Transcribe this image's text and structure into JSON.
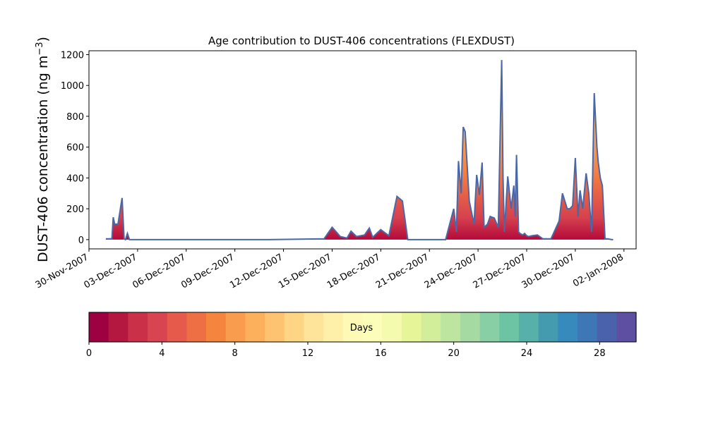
{
  "chart_data": {
    "type": "area",
    "title": "Age contribution to DUST-406 concentrations (FLEXDUST)",
    "ylabel_main": "DUST-406 concentration (ng m",
    "ylabel_sup": "−3",
    "ylabel_close": ")",
    "xlabel": "",
    "ylim": [
      -60,
      1225
    ],
    "yticks": [
      0,
      200,
      400,
      600,
      800,
      1000,
      1200
    ],
    "xlim": [
      "2007-11-30T00:00",
      "2008-01-02T18:00"
    ],
    "xticks": [
      "2007-11-30",
      "2007-12-03",
      "2007-12-06",
      "2007-12-09",
      "2007-12-12",
      "2007-12-15",
      "2007-12-18",
      "2007-12-21",
      "2007-12-24",
      "2007-12-27",
      "2007-12-30",
      "2008-01-02"
    ],
    "xtick_labels": [
      "30-Nov-2007",
      "03-Dec-2007",
      "06-Dec-2007",
      "09-Dec-2007",
      "12-Dec-2007",
      "15-Dec-2007",
      "18-Dec-2007",
      "21-Dec-2007",
      "24-Dec-2007",
      "27-Dec-2007",
      "30-Dec-2007",
      "02-Jan-2008"
    ],
    "grid": false,
    "line_color": "#4a68a8",
    "series": [
      {
        "x": [
          "2007-12-01T01:00",
          "2007-12-01T10:00",
          "2007-12-01T12:00",
          "2007-12-01T14:00",
          "2007-12-01T19:00",
          "2007-12-02T01:00",
          "2007-12-02T04:00",
          "2007-12-02T06:00",
          "2007-12-02T09:00",
          "2007-12-02T12:00",
          "2007-12-02T18:00",
          "2007-12-02T20:00",
          "2007-12-02T22:00",
          "2007-12-03T00:00",
          "2007-12-03T07:00",
          "2007-12-04T00:00",
          "2007-12-07T00:00",
          "2007-12-09T00:00",
          "2007-12-11T00:00",
          "2007-12-14T12:00",
          "2007-12-15T00:00",
          "2007-12-15T08:00",
          "2007-12-15T12:00",
          "2007-12-15T22:00",
          "2007-12-16T04:00",
          "2007-12-16T12:00",
          "2007-12-17T00:00",
          "2007-12-17T07:00",
          "2007-12-17T12:00",
          "2007-12-18T00:00",
          "2007-12-18T12:00",
          "2007-12-19T00:00",
          "2007-12-19T08:00",
          "2007-12-19T16:00",
          "2007-12-19T22:00",
          "2007-12-20T04:00",
          "2007-12-20T09:00",
          "2007-12-20T14:00",
          "2007-12-21T00:00",
          "2007-12-21T12:00",
          "2007-12-22T00:00",
          "2007-12-22T12:00",
          "2007-12-22T16:00",
          "2007-12-22T19:00",
          "2007-12-22T23:00",
          "2007-12-23T02:00",
          "2007-12-23T05:00",
          "2007-12-23T11:00",
          "2007-12-23T18:00",
          "2007-12-23T22:00",
          "2007-12-24T02:00",
          "2007-12-24T06:00",
          "2007-12-24T09:00",
          "2007-12-24T14:00",
          "2007-12-24T18:00",
          "2007-12-25T00:00",
          "2007-12-25T06:00",
          "2007-12-25T11:00",
          "2007-12-25T13:00",
          "2007-12-25T15:00",
          "2007-12-25T20:00",
          "2007-12-26T01:00",
          "2007-12-26T05:00",
          "2007-12-26T07:00",
          "2007-12-26T09:00",
          "2007-12-26T12:00",
          "2007-12-26T14:00",
          "2007-12-26T18:00",
          "2007-12-26T21:00",
          "2007-12-27T00:00",
          "2007-12-27T03:00",
          "2007-12-27T08:00",
          "2007-12-27T16:00",
          "2007-12-28T00:00",
          "2007-12-28T12:00",
          "2007-12-29T00:00",
          "2007-12-29T05:00",
          "2007-12-29T12:00",
          "2007-12-29T16:00",
          "2007-12-29T20:00",
          "2007-12-30T00:00",
          "2007-12-30T04:00",
          "2007-12-30T07:00",
          "2007-12-30T11:00",
          "2007-12-30T16:00",
          "2007-12-30T20:00",
          "2007-12-31T00:00",
          "2007-12-31T04:00",
          "2007-12-31T08:00",
          "2007-12-31T10:00",
          "2007-12-31T13:00",
          "2007-12-31T16:00",
          "2007-12-31T20:00",
          "2008-01-01T00:00",
          "2008-01-01T06:00",
          "2008-01-01T08:00"
        ],
        "y": [
          5,
          5,
          145,
          100,
          100,
          270,
          5,
          0,
          40,
          0,
          0,
          0,
          0,
          0,
          0,
          0,
          0,
          0,
          0,
          5,
          80,
          40,
          20,
          10,
          55,
          20,
          30,
          75,
          15,
          65,
          25,
          280,
          250,
          0,
          0,
          0,
          0,
          0,
          0,
          0,
          0,
          200,
          50,
          510,
          300,
          730,
          700,
          250,
          100,
          420,
          290,
          500,
          80,
          100,
          150,
          140,
          80,
          1165,
          400,
          50,
          410,
          200,
          350,
          150,
          550,
          50,
          40,
          30,
          40,
          25,
          20,
          25,
          30,
          5,
          5,
          120,
          300,
          200,
          200,
          220,
          530,
          150,
          320,
          200,
          430,
          300,
          50,
          950,
          600,
          500,
          400,
          350,
          5,
          5,
          0,
          0
        ]
      }
    ],
    "colorbar": {
      "label": "Days",
      "ticks": [
        0,
        4,
        8,
        12,
        16,
        20,
        24,
        28
      ],
      "range": [
        0,
        30
      ],
      "colors": [
        "#9e0142",
        "#b4173f",
        "#ca3048",
        "#d94451",
        "#e55a4a",
        "#ee6f43",
        "#f5853e",
        "#f99c4d",
        "#fcb05c",
        "#fdc371",
        "#fdd585",
        "#fee49b",
        "#fef0a8",
        "#fef9b5",
        "#fbfdb9",
        "#f4faae",
        "#e6f598",
        "#d3ee9b",
        "#bee5a0",
        "#a5dba3",
        "#88cfa5",
        "#6cc4a5",
        "#57b0aa",
        "#449aae",
        "#378bbc",
        "#3d77b5",
        "#4a62ac",
        "#5e4fa2"
      ]
    }
  }
}
